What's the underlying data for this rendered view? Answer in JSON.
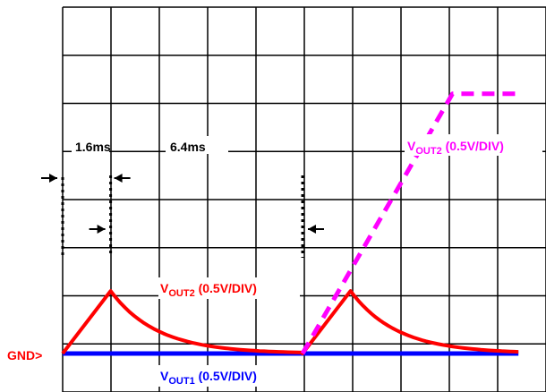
{
  "chart_data": {
    "type": "line",
    "title": "",
    "grid": true,
    "grid_divisions": {
      "x": 10,
      "y": 8
    },
    "x_unit": "ms",
    "annotations": {
      "interval_1": "1.6ms",
      "interval_2": "6.4ms",
      "gnd_marker": "GND>"
    },
    "series": [
      {
        "name": "VOUT2 (0.5V/DIV)",
        "label_main": "V",
        "label_sub": "OUT2",
        "label_suffix": " (0.5V/DIV)",
        "color": "#ff0000",
        "style": "solid",
        "x": [
          0,
          1.6,
          1.8,
          2.5,
          3.2,
          4.0,
          5.0,
          6.0,
          7.0,
          8.0,
          9.6,
          9.8,
          10.5,
          11.2,
          12.0,
          13.0,
          14.0,
          15.2
        ],
        "y": [
          0,
          1.3,
          1.05,
          0.7,
          0.45,
          0.27,
          0.15,
          0.08,
          0.04,
          0.0,
          1.3,
          1.05,
          0.7,
          0.45,
          0.27,
          0.15,
          0.08,
          0.04
        ]
      },
      {
        "name": "VOUT2 (0.5V/DIV)",
        "label_main": "V",
        "label_sub": "OUT2",
        "label_suffix": " (0.5V/DIV)",
        "color": "#ff00ff",
        "style": "dashed",
        "x": [
          8.0,
          13.0,
          13.6,
          15.2
        ],
        "y": [
          0.0,
          5.4,
          5.4,
          5.4
        ]
      },
      {
        "name": "VOUT1 (0.5V/DIV)",
        "label_main": "V",
        "label_sub": "OUT1",
        "label_suffix": " (0.5V/DIV)",
        "color": "#0000ff",
        "style": "solid",
        "x": [
          0,
          15.2
        ],
        "y": [
          0,
          0
        ]
      }
    ]
  }
}
